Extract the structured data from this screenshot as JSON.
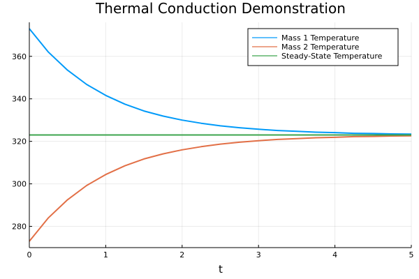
{
  "chart_data": {
    "type": "line",
    "title": "Thermal Conduction Demonstration",
    "xlabel": "t",
    "ylabel": "",
    "xlim": [
      0,
      5
    ],
    "ylim": [
      270,
      376
    ],
    "xticks": [
      0,
      1,
      2,
      3,
      4,
      5
    ],
    "yticks": [
      280,
      300,
      320,
      340,
      360
    ],
    "grid": true,
    "legend_position": "top-right",
    "series": [
      {
        "name": "Mass 1 Temperature",
        "color": "#009af9",
        "x": [
          0,
          0.25,
          0.5,
          0.75,
          1,
          1.25,
          1.5,
          1.75,
          2,
          2.25,
          2.5,
          2.75,
          3,
          3.25,
          3.5,
          3.75,
          4,
          4.25,
          4.5,
          4.75,
          5
        ],
        "y": [
          373,
          362.0,
          353.5,
          346.8,
          341.6,
          337.5,
          334.3,
          331.9,
          330.0,
          328.5,
          327.3,
          326.4,
          325.7,
          325.1,
          324.7,
          324.3,
          324.1,
          323.8,
          323.7,
          323.5,
          323.4
        ]
      },
      {
        "name": "Mass 2 Temperature",
        "color": "#e26f46",
        "x": [
          0,
          0.25,
          0.5,
          0.75,
          1,
          1.25,
          1.5,
          1.75,
          2,
          2.25,
          2.5,
          2.75,
          3,
          3.25,
          3.5,
          3.75,
          4,
          4.25,
          4.5,
          4.75,
          5
        ],
        "y": [
          273,
          284.0,
          292.5,
          299.2,
          304.4,
          308.5,
          311.7,
          314.1,
          316.0,
          317.5,
          318.7,
          319.6,
          320.3,
          320.9,
          321.3,
          321.7,
          321.9,
          322.2,
          322.3,
          322.5,
          322.6
        ]
      },
      {
        "name": "Steady-State Temperature",
        "color": "#3da44d",
        "x": [
          0,
          5
        ],
        "y": [
          323,
          323
        ]
      }
    ]
  }
}
